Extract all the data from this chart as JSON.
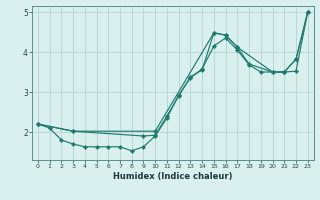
{
  "xlabel": "Humidex (Indice chaleur)",
  "bg_color": "#daf0ee",
  "grid_color": "#b8d8d5",
  "line_color": "#1e7b6e",
  "xlim": [
    -0.5,
    23.5
  ],
  "ylim": [
    1.3,
    5.15
  ],
  "yticks": [
    2,
    3,
    4,
    5
  ],
  "xticks": [
    0,
    1,
    2,
    3,
    4,
    5,
    6,
    7,
    8,
    9,
    10,
    11,
    12,
    13,
    14,
    15,
    16,
    17,
    18,
    19,
    20,
    21,
    22,
    23
  ],
  "line1_x": [
    0,
    1,
    2,
    3,
    4,
    5,
    6,
    7,
    8,
    9,
    10,
    11,
    12,
    13,
    14,
    15,
    16,
    17,
    18,
    19,
    20,
    21,
    22,
    23
  ],
  "line1_y": [
    2.2,
    2.1,
    1.8,
    1.7,
    1.63,
    1.63,
    1.63,
    1.63,
    1.53,
    1.63,
    1.9,
    2.35,
    2.92,
    3.35,
    3.58,
    4.15,
    4.35,
    4.05,
    3.68,
    3.5,
    3.5,
    3.5,
    3.82,
    5.0
  ],
  "line2_x": [
    0,
    3,
    10,
    15,
    16,
    17,
    20,
    21,
    22,
    23
  ],
  "line2_y": [
    2.2,
    2.02,
    2.02,
    4.48,
    4.42,
    4.12,
    3.5,
    3.5,
    3.52,
    5.0
  ],
  "line3_x": [
    0,
    3,
    9,
    10,
    11,
    12,
    13,
    14,
    15,
    16,
    17,
    18,
    20,
    21,
    22,
    23
  ],
  "line3_y": [
    2.2,
    2.02,
    1.9,
    1.92,
    2.4,
    2.9,
    3.38,
    3.55,
    4.48,
    4.42,
    4.12,
    3.7,
    3.5,
    3.5,
    3.82,
    5.0
  ]
}
